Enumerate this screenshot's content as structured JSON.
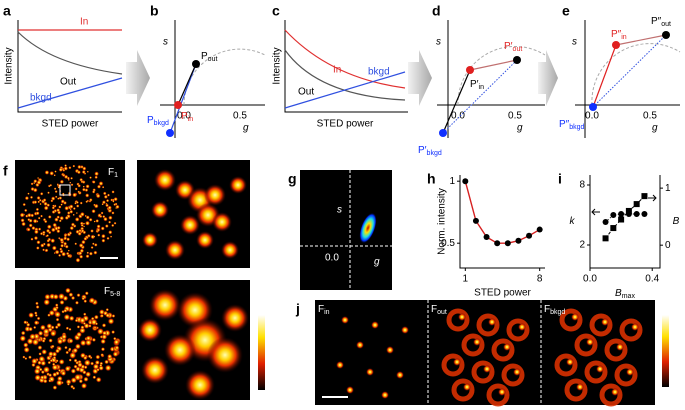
{
  "panel_labels": [
    "a",
    "b",
    "c",
    "d",
    "e",
    "f",
    "g",
    "h",
    "i",
    "j"
  ],
  "a": {
    "y_label": "Intensity",
    "x_label": "STED power",
    "in": "In",
    "out": "Out",
    "bkgd": "bkgd"
  },
  "b": {
    "s": "s",
    "g": "g",
    "ticks": [
      "0.0",
      "0.5"
    ],
    "p_out": {
      "main": "P",
      "sub": "out"
    },
    "p_in": {
      "main": "P",
      "sub": "in"
    },
    "p_bkgd": {
      "main": "P",
      "sub": "bkgd"
    }
  },
  "c": {
    "y_label": "Intensity",
    "x_label": "STED power",
    "in": "In",
    "out": "Out",
    "bkgd": "bkgd"
  },
  "d": {
    "s": "s",
    "g": "g",
    "ticks": [
      "0.0",
      "0.5"
    ],
    "p_out": {
      "main": "P′",
      "sub": "out"
    },
    "p_in": {
      "main": "P′",
      "sub": "in"
    },
    "p_bkgd": {
      "main": "P′",
      "sub": "bkgd"
    }
  },
  "e": {
    "s": "s",
    "g": "g",
    "ticks": [
      "0.0",
      "0.5"
    ],
    "p_out": {
      "main": "P″",
      "sub": "out"
    },
    "p_in": {
      "main": "P″",
      "sub": "in"
    },
    "p_bkgd": {
      "main": "P″",
      "sub": "bkgd"
    }
  },
  "f": {
    "top": {
      "main": "F",
      "sub": "1"
    },
    "bottom": {
      "main": "F",
      "sub": "5-8"
    }
  },
  "g": {
    "s": "s",
    "g": "g",
    "tick": "0.0"
  },
  "j": {
    "fin": {
      "main": "F",
      "sub": "in"
    },
    "fout": {
      "main": "F",
      "sub": "out"
    },
    "fbkgd": {
      "main": "F",
      "sub": "bkgd"
    }
  },
  "chart_data": [
    {
      "type": "line",
      "x_label": "STED power",
      "y_label": "Norm. intensity",
      "x": [
        1,
        2,
        3,
        4,
        5,
        6,
        7,
        8
      ],
      "series": [
        {
          "color": "#d62020",
          "marker_color": "#000000",
          "values": [
            1.0,
            0.68,
            0.55,
            0.5,
            0.5,
            0.52,
            0.56,
            0.61
          ]
        }
      ],
      "xlim": [
        0.5,
        8.5
      ],
      "xticks": [
        1,
        8
      ],
      "ylim": [
        0.3,
        1.05
      ],
      "yticks": [
        0.5,
        1
      ]
    },
    {
      "type": "line",
      "x_label": {
        "main": "B",
        "sub": "max"
      },
      "y_label": "k",
      "y2_label": "B",
      "x": [
        0.1,
        0.15,
        0.2,
        0.25,
        0.3,
        0.35
      ],
      "series": [
        {
          "color": "#000000",
          "marker": "circle",
          "values": [
            4.3,
            5.0,
            5.1,
            5.1,
            5.1,
            5.1
          ]
        },
        {
          "color": "#000000",
          "marker": "square",
          "axis": "y2",
          "values": [
            0.12,
            0.3,
            0.45,
            0.6,
            0.72,
            0.86
          ]
        }
      ],
      "xlim": [
        0,
        0.45
      ],
      "xticks": [
        {
          "value": 0,
          "label": "0.0"
        },
        0.4
      ],
      "ylim": [
        -0.3,
        9.0
      ],
      "yticks": [
        2,
        8
      ],
      "y2lim": [
        -0.4,
        1.23
      ],
      "y2ticks": [
        0,
        1
      ]
    }
  ]
}
